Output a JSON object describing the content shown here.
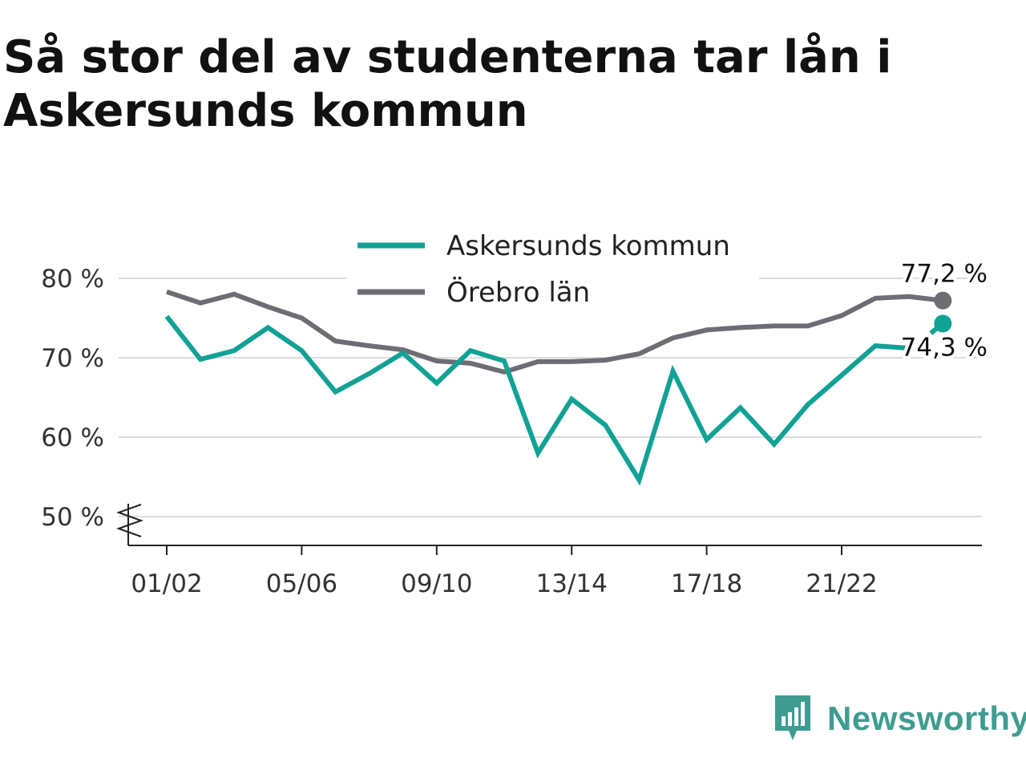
{
  "title": "Så stor del av studenterna tar lån i Askersunds kommun",
  "brand": {
    "name": "Newsworthy",
    "icon": "newsworthy-logo-icon",
    "color": "#3f9c91"
  },
  "chart_data": {
    "type": "line",
    "title": "Så stor del av studenterna tar lån i Askersunds kommun",
    "xlabel": "",
    "ylabel": "",
    "ylim": [
      47,
      81
    ],
    "y_ticks": [
      50,
      60,
      70,
      80
    ],
    "y_tick_labels": [
      "50 %",
      "60 %",
      "70 %",
      "80 %"
    ],
    "y_axis_broken": true,
    "grid": true,
    "legend_position": "top-center",
    "x": [
      "01/02",
      "02/03",
      "03/04",
      "04/05",
      "05/06",
      "06/07",
      "07/08",
      "08/09",
      "09/10",
      "10/11",
      "11/12",
      "12/13",
      "13/14",
      "14/15",
      "15/16",
      "16/17",
      "17/18",
      "18/19",
      "19/20",
      "20/21",
      "21/22",
      "22/23",
      "23/24",
      "24/25"
    ],
    "x_tick_labels": [
      "01/02",
      "05/06",
      "09/10",
      "13/14",
      "17/18",
      "21/22"
    ],
    "series": [
      {
        "name": "Askersunds kommun",
        "color": "#12a195",
        "values": [
          75.2,
          69.8,
          70.9,
          73.8,
          70.9,
          65.7,
          68.0,
          70.6,
          66.8,
          70.9,
          69.6,
          58.0,
          64.8,
          61.5,
          54.6,
          68.3,
          59.7,
          63.7,
          59.1,
          64.1,
          67.8,
          71.5,
          71.2,
          74.3
        ],
        "gap_before_last": true,
        "end_label": "74,3 %"
      },
      {
        "name": "Örebro län",
        "color": "#6e6d74",
        "values": [
          78.3,
          76.9,
          78.0,
          76.4,
          75.0,
          72.1,
          71.5,
          71.0,
          69.6,
          69.3,
          68.2,
          69.5,
          69.5,
          69.7,
          70.5,
          72.5,
          73.5,
          73.8,
          74.0,
          74.0,
          75.3,
          77.5,
          77.7,
          77.2
        ],
        "end_label": "77,2 %"
      }
    ]
  }
}
